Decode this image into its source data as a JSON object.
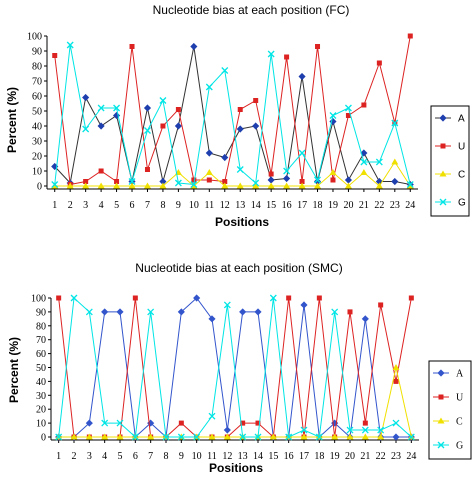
{
  "chart_data": [
    {
      "type": "line",
      "title": "Nucleotide bias at each position (FC)",
      "xlabel": "Positions",
      "ylabel": "Percent (%)",
      "ylim": [
        0,
        100
      ],
      "yticks": [
        0,
        10,
        20,
        30,
        40,
        50,
        60,
        70,
        80,
        90,
        100
      ],
      "grid": false,
      "legend_position": "right",
      "x": [
        1,
        2,
        3,
        4,
        5,
        6,
        7,
        8,
        9,
        10,
        11,
        12,
        13,
        14,
        15,
        16,
        17,
        18,
        19,
        20,
        21,
        22,
        23,
        24
      ],
      "series": [
        {
          "name": "A",
          "color": "#1f3fae",
          "line_color": "#333333",
          "marker": "diamond",
          "values": [
            13,
            2,
            59,
            40,
            47,
            3,
            52,
            3,
            40,
            93,
            22,
            19,
            38,
            40,
            4,
            5,
            73,
            3,
            43,
            4,
            22,
            3,
            3,
            1
          ]
        },
        {
          "name": "U",
          "color": "#dd2222",
          "line_color": "#dd2222",
          "marker": "square",
          "values": [
            87,
            1,
            3,
            10,
            3,
            93,
            11,
            40,
            51,
            4,
            4,
            3,
            51,
            57,
            8,
            86,
            3,
            93,
            4,
            47,
            54,
            82,
            42,
            100
          ]
        },
        {
          "name": "C",
          "color": "#f0e000",
          "line_color": "#f0e000",
          "marker": "triangle",
          "values": [
            0,
            0,
            0,
            0,
            0,
            0,
            0,
            0,
            9,
            0,
            9,
            0,
            0,
            0,
            0,
            0,
            0,
            0,
            9,
            0,
            9,
            0,
            16,
            0
          ]
        },
        {
          "name": "G",
          "color": "#00e5e5",
          "line_color": "#00e5e5",
          "marker": "x",
          "values": [
            1,
            94,
            38,
            52,
            52,
            3,
            37,
            57,
            2,
            1,
            66,
            77,
            11,
            2,
            88,
            10,
            22,
            4,
            47,
            52,
            16,
            16,
            42,
            1
          ]
        }
      ]
    },
    {
      "type": "line",
      "title": "Nucleotide bias at each position (SMC)",
      "xlabel": "Positions",
      "ylabel": "Percent (%)",
      "ylim": [
        0,
        100
      ],
      "yticks": [
        0,
        10,
        20,
        30,
        40,
        50,
        60,
        70,
        80,
        90,
        100
      ],
      "grid": false,
      "legend_position": "right",
      "x": [
        1,
        2,
        3,
        4,
        5,
        6,
        7,
        8,
        9,
        10,
        11,
        12,
        13,
        14,
        15,
        16,
        17,
        18,
        19,
        20,
        21,
        22,
        23,
        24
      ],
      "series": [
        {
          "name": "A",
          "color": "#3355cc",
          "line_color": "#3355cc",
          "marker": "diamond",
          "values": [
            0,
            0,
            10,
            90,
            90,
            0,
            10,
            0,
            90,
            100,
            85,
            5,
            90,
            90,
            0,
            0,
            95,
            0,
            10,
            0,
            85,
            0,
            0,
            0
          ]
        },
        {
          "name": "U",
          "color": "#dd2222",
          "line_color": "#dd2222",
          "marker": "square",
          "values": [
            100,
            0,
            0,
            0,
            0,
            100,
            0,
            0,
            10,
            0,
            0,
            0,
            10,
            10,
            0,
            100,
            0,
            100,
            0,
            90,
            10,
            95,
            40,
            100
          ]
        },
        {
          "name": "C",
          "color": "#f0e000",
          "line_color": "#f0e000",
          "marker": "triangle",
          "values": [
            0,
            0,
            0,
            0,
            0,
            0,
            0,
            0,
            0,
            0,
            0,
            0,
            0,
            0,
            0,
            0,
            0,
            0,
            0,
            0,
            0,
            0,
            50,
            0
          ]
        },
        {
          "name": "G",
          "color": "#00e5e5",
          "line_color": "#00e5e5",
          "marker": "x",
          "values": [
            0,
            100,
            90,
            10,
            10,
            0,
            90,
            0,
            0,
            0,
            15,
            95,
            0,
            0,
            100,
            0,
            5,
            0,
            90,
            5,
            5,
            5,
            10,
            0
          ]
        }
      ]
    }
  ]
}
